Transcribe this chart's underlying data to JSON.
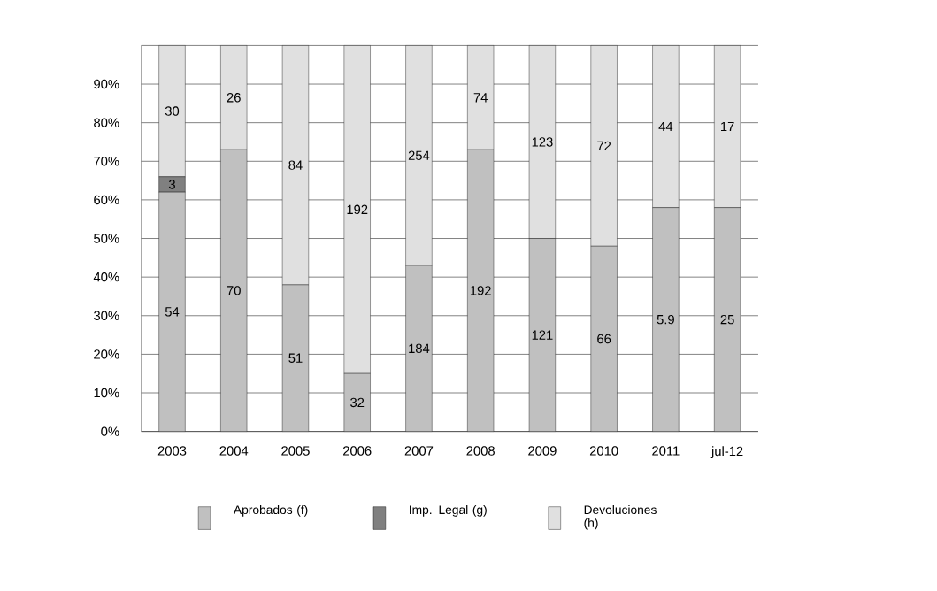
{
  "chart_data": {
    "type": "bar",
    "stacked": true,
    "categories": [
      "2003",
      "2004",
      "2005",
      "2006",
      "2007",
      "2008",
      "2009",
      "2010",
      "2011",
      "jul-12"
    ],
    "series": [
      {
        "name": "Aprobados (f)",
        "color": "#c0c0c0",
        "values": [
          62,
          73,
          38,
          15,
          43,
          73,
          50,
          48,
          58,
          58
        ]
      },
      {
        "name": "Imp. Legal (g)",
        "color": "#808080",
        "values": [
          4,
          0,
          0,
          0,
          0,
          0,
          0,
          0,
          0,
          0
        ]
      },
      {
        "name": "Devoluciones (h)",
        "color": "#e0e0e0",
        "values": [
          34,
          27,
          62,
          85,
          57,
          27,
          50,
          52,
          42,
          42
        ]
      }
    ],
    "annotations": [
      "54",
      "3",
      "30",
      "70",
      "26",
      "51",
      "84",
      "32",
      "192",
      "184",
      "254",
      "192",
      "74",
      "121",
      "123",
      "66",
      "72",
      "5.9",
      "44",
      "25",
      "17"
    ],
    "ylim": [
      0,
      100
    ],
    "yticks": [
      {
        "value": 0,
        "label": "0%"
      },
      {
        "value": 10,
        "label": "10%"
      },
      {
        "value": 20,
        "label": "20%"
      },
      {
        "value": 30,
        "label": "30%"
      },
      {
        "value": 40,
        "label": "40%"
      },
      {
        "value": 50,
        "label": "50%"
      },
      {
        "value": 60,
        "label": "60%"
      },
      {
        "value": 70,
        "label": "70%"
      },
      {
        "value": 80,
        "label": "80%"
      },
      {
        "value": 90,
        "label": "90%"
      },
      {
        "value": 100,
        "label": null
      }
    ],
    "grid": "y",
    "legend": "bottom"
  }
}
